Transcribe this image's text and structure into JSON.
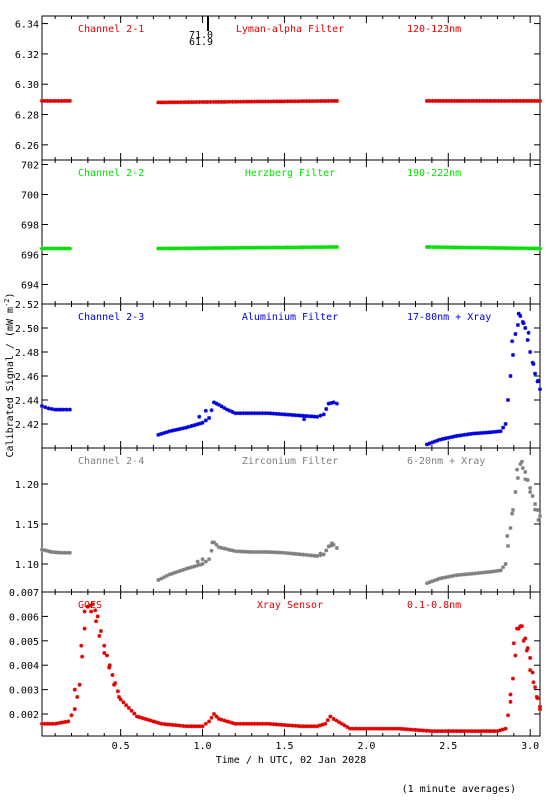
{
  "figure": {
    "ylabel": "Calibrated Signal / (mW m",
    "ylabel_sup": "-2",
    "ylabel_end": ")",
    "xlabel": "Time / h UTC, 02 Jan 2028",
    "footnote": "(1 minute averages)",
    "annotation_top": "71.0",
    "annotation_bottom": "61.9",
    "x_ticks": [
      "0.5",
      "1.0",
      "1.5",
      "2.0",
      "2.5",
      "3.0"
    ]
  },
  "chart_data": [
    {
      "type": "scatter",
      "channel": "Channel 2-1",
      "filter": "Lyman-alpha Filter",
      "band": "120-123nm",
      "color": "#e00000",
      "xlim": [
        0.02,
        3.06
      ],
      "ylim": [
        6.25,
        6.345
      ],
      "y_ticks": [
        "6.26",
        "6.28",
        "6.30",
        "6.32",
        "6.34"
      ],
      "series": [
        {
          "segments": [
            {
              "x": [
                0.02,
                0.19
              ],
              "y": [
                6.289,
                6.289
              ]
            },
            {
              "x": [
                0.73,
                1.82
              ],
              "y": [
                6.288,
                6.289
              ]
            },
            {
              "x": [
                2.37,
                3.06
              ],
              "y": [
                6.289,
                6.289
              ]
            }
          ]
        }
      ]
    },
    {
      "type": "scatter",
      "channel": "Channel 2-2",
      "filter": "Herzberg Filter",
      "band": "190-222nm",
      "color": "#00e000",
      "xlim": [
        0.02,
        3.06
      ],
      "ylim": [
        692.7,
        702.3
      ],
      "y_ticks": [
        "694",
        "696",
        "698",
        "700",
        "702"
      ],
      "series": [
        {
          "segments": [
            {
              "x": [
                0.02,
                0.19
              ],
              "y": [
                696.4,
                696.4
              ]
            },
            {
              "x": [
                0.73,
                1.82
              ],
              "y": [
                696.4,
                696.5
              ]
            },
            {
              "x": [
                2.37,
                3.06
              ],
              "y": [
                696.5,
                696.4
              ]
            }
          ]
        }
      ]
    },
    {
      "type": "scatter",
      "channel": "Channel 2-3",
      "filter": "Aluminium Filter",
      "band": "17-80nm + Xray",
      "color": "#0000dd",
      "xlim": [
        0.02,
        3.06
      ],
      "ylim": [
        2.4,
        2.52
      ],
      "y_ticks": [
        "2.42",
        "2.44",
        "2.46",
        "2.48",
        "2.50",
        "2.52"
      ],
      "series": [
        {
          "segments": [
            {
              "x": [
                0.02,
                0.06,
                0.1,
                0.15,
                0.19
              ],
              "y": [
                2.435,
                2.433,
                2.432,
                2.432,
                2.432
              ]
            },
            {
              "x": [
                0.73,
                0.8,
                0.9,
                1.0,
                1.04,
                1.07,
                1.1,
                1.15,
                1.2,
                1.3,
                1.4,
                1.5,
                1.6,
                1.7,
                1.74,
                1.77,
                1.8,
                1.82
              ],
              "y": [
                2.411,
                2.414,
                2.417,
                2.421,
                2.425,
                2.438,
                2.436,
                2.432,
                2.429,
                2.429,
                2.429,
                2.428,
                2.427,
                2.426,
                2.428,
                2.437,
                2.438,
                2.437
              ]
            },
            {
              "x": [
                2.37,
                2.45,
                2.55,
                2.65,
                2.75,
                2.82,
                2.85,
                2.88,
                2.91,
                2.94,
                2.97,
                3.0,
                3.03,
                3.06
              ],
              "y": [
                2.403,
                2.407,
                2.41,
                2.412,
                2.413,
                2.414,
                2.42,
                2.46,
                2.495,
                2.51,
                2.5,
                2.48,
                2.462,
                2.449
              ]
            }
          ],
          "points": [
            {
              "x": 0.98,
              "y": 2.426
            },
            {
              "x": 1.02,
              "y": 2.431
            },
            {
              "x": 1.62,
              "y": 2.424
            },
            {
              "x": 2.89,
              "y": 2.489
            },
            {
              "x": 2.93,
              "y": 2.512
            },
            {
              "x": 2.96,
              "y": 2.504
            },
            {
              "x": 2.99,
              "y": 2.496
            },
            {
              "x": 3.02,
              "y": 2.47
            },
            {
              "x": 3.05,
              "y": 2.456
            }
          ]
        }
      ]
    },
    {
      "type": "scatter",
      "channel": "Channel 2-4",
      "filter": "Zirconium Filter",
      "band": "6-20nm + Xray",
      "color": "#808080",
      "xlim": [
        0.02,
        3.06
      ],
      "ylim": [
        1.065,
        1.245
      ],
      "y_ticks": [
        "1.10",
        "1.15",
        "1.20"
      ],
      "series": [
        {
          "segments": [
            {
              "x": [
                0.02,
                0.08,
                0.14,
                0.19
              ],
              "y": [
                1.118,
                1.115,
                1.114,
                1.114
              ]
            },
            {
              "x": [
                0.73,
                0.8,
                0.9,
                1.0,
                1.04,
                1.07,
                1.1,
                1.2,
                1.3,
                1.4,
                1.5,
                1.6,
                1.7,
                1.74,
                1.77,
                1.8,
                1.82
              ],
              "y": [
                1.08,
                1.087,
                1.094,
                1.1,
                1.106,
                1.127,
                1.121,
                1.116,
                1.115,
                1.115,
                1.114,
                1.112,
                1.11,
                1.112,
                1.122,
                1.124,
                1.12
              ]
            },
            {
              "x": [
                2.37,
                2.45,
                2.55,
                2.65,
                2.75,
                2.82,
                2.85,
                2.88,
                2.91,
                2.94,
                2.97,
                3.0,
                3.03,
                3.06
              ],
              "y": [
                1.076,
                1.082,
                1.086,
                1.088,
                1.09,
                1.092,
                1.1,
                1.145,
                1.19,
                1.225,
                1.215,
                1.195,
                1.175,
                1.16
              ]
            }
          ],
          "points": [
            {
              "x": 0.97,
              "y": 1.103
            },
            {
              "x": 1.0,
              "y": 1.106
            },
            {
              "x": 1.06,
              "y": 1.127
            },
            {
              "x": 1.72,
              "y": 1.113
            },
            {
              "x": 1.79,
              "y": 1.126
            },
            {
              "x": 2.86,
              "y": 1.135
            },
            {
              "x": 2.89,
              "y": 1.163
            },
            {
              "x": 2.92,
              "y": 1.218
            },
            {
              "x": 2.95,
              "y": 1.228
            },
            {
              "x": 2.97,
              "y": 1.206
            },
            {
              "x": 3.0,
              "y": 1.19
            },
            {
              "x": 3.03,
              "y": 1.168
            },
            {
              "x": 3.05,
              "y": 1.155
            }
          ]
        }
      ]
    },
    {
      "type": "scatter",
      "channel": "GOES",
      "filter": "Xray Sensor",
      "band": "0.1-0.8nm",
      "color": "#e00000",
      "xlim": [
        0.02,
        3.06
      ],
      "ylim": [
        0.0011,
        0.007
      ],
      "y_ticks": [
        "0.002",
        "0.003",
        "0.004",
        "0.005",
        "0.006",
        "0.007"
      ],
      "series": [
        {
          "segments": [
            {
              "x": [
                0.02,
                0.1,
                0.18,
                0.22,
                0.25,
                0.28,
                0.3,
                0.33,
                0.36,
                0.4,
                0.45,
                0.5,
                0.6,
                0.75,
                0.9,
                1.0,
                1.04,
                1.07,
                1.1,
                1.2,
                1.4,
                1.6,
                1.7,
                1.75,
                1.78,
                1.8,
                1.85,
                1.9,
                2.0,
                2.1,
                2.2,
                2.4,
                2.6,
                2.8,
                2.85,
                2.88,
                2.91,
                2.93,
                2.95,
                2.97,
                3.0,
                3.03,
                3.06
              ],
              "y": [
                0.0016,
                0.0016,
                0.0017,
                0.0022,
                0.0032,
                0.0055,
                0.0064,
                0.0065,
                0.006,
                0.0048,
                0.0036,
                0.0026,
                0.0019,
                0.0016,
                0.0015,
                0.0015,
                0.0017,
                0.002,
                0.0018,
                0.0016,
                0.0016,
                0.0015,
                0.0015,
                0.0016,
                0.0019,
                0.0018,
                0.0016,
                0.0014,
                0.0014,
                0.0014,
                0.0014,
                0.0013,
                0.0013,
                0.0013,
                0.0014,
                0.0025,
                0.0044,
                0.0055,
                0.0056,
                0.0051,
                0.0043,
                0.0031,
                0.0022
              ]
            }
          ],
          "points": [
            {
              "x": 0.22,
              "y": 0.003
            },
            {
              "x": 0.26,
              "y": 0.0048
            },
            {
              "x": 0.28,
              "y": 0.0062
            },
            {
              "x": 0.3,
              "y": 0.0064
            },
            {
              "x": 0.32,
              "y": 0.0062
            },
            {
              "x": 0.35,
              "y": 0.0058
            },
            {
              "x": 0.37,
              "y": 0.0052
            },
            {
              "x": 0.4,
              "y": 0.0045
            },
            {
              "x": 0.43,
              "y": 0.0039
            },
            {
              "x": 0.46,
              "y": 0.0032
            },
            {
              "x": 0.49,
              "y": 0.0027
            },
            {
              "x": 2.88,
              "y": 0.0028
            },
            {
              "x": 2.9,
              "y": 0.0049
            },
            {
              "x": 2.92,
              "y": 0.0055
            },
            {
              "x": 2.94,
              "y": 0.0056
            },
            {
              "x": 2.96,
              "y": 0.005
            },
            {
              "x": 2.98,
              "y": 0.0046
            },
            {
              "x": 3.0,
              "y": 0.0038
            },
            {
              "x": 3.02,
              "y": 0.0033
            },
            {
              "x": 3.04,
              "y": 0.0027
            },
            {
              "x": 3.06,
              "y": 0.0023
            }
          ]
        }
      ]
    }
  ]
}
